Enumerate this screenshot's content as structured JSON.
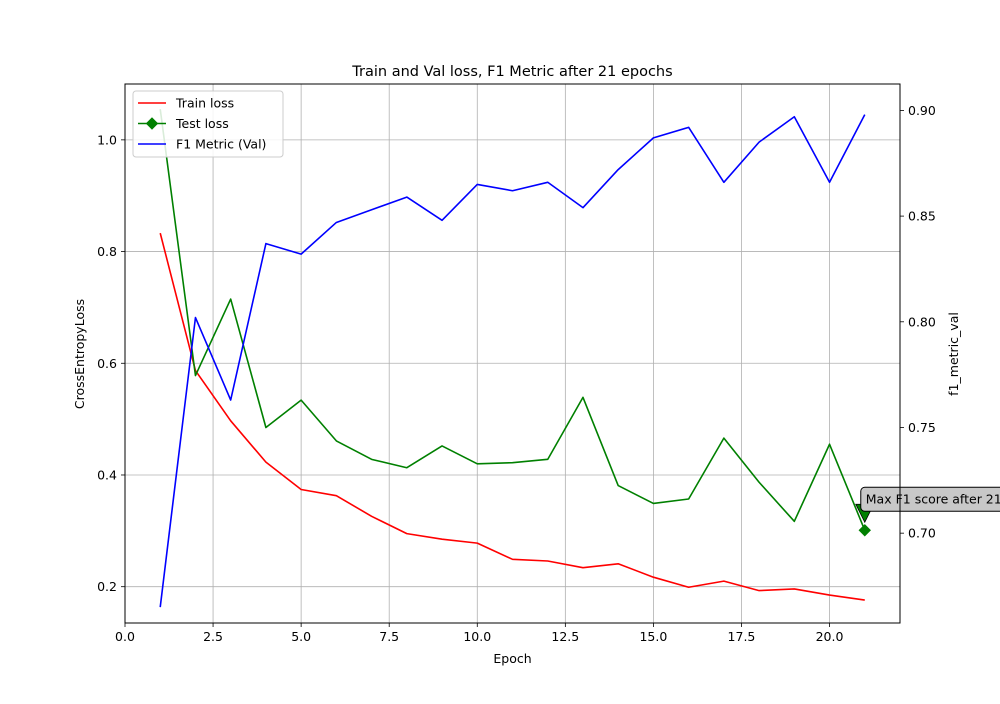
{
  "chart_data": {
    "type": "line",
    "title": "Train and Val loss, F1 Metric after 21 epochs",
    "xlabel": "Epoch",
    "ylabel": "CrossEntropyLoss",
    "ylabel_right": "f1_metric_val",
    "xlim": [
      0,
      22.0
    ],
    "ylim": [
      0.135,
      1.1
    ],
    "ylim_right": [
      0.6575,
      0.9125
    ],
    "x_ticks": [
      "0.0",
      "2.5",
      "5.0",
      "7.5",
      "10.0",
      "12.5",
      "15.0",
      "17.5",
      "20.0"
    ],
    "y_ticks": [
      "0.2",
      "0.4",
      "0.6",
      "0.8",
      "1.0"
    ],
    "y_ticks_right": [
      "0.70",
      "0.75",
      "0.80",
      "0.85",
      "0.90"
    ],
    "grid": true,
    "legend_position": "top-left",
    "x": [
      1,
      2,
      3,
      4,
      5,
      6,
      7,
      8,
      9,
      10,
      11,
      12,
      13,
      14,
      15,
      16,
      17,
      18,
      19,
      20,
      21
    ],
    "series": [
      {
        "name": "Train loss",
        "axis": "left",
        "color": "#ff0000",
        "marker": "none",
        "values": [
          0.833,
          0.587,
          0.497,
          0.423,
          0.374,
          0.363,
          0.326,
          0.295,
          0.285,
          0.278,
          0.249,
          0.246,
          0.234,
          0.241,
          0.217,
          0.199,
          0.21,
          0.193,
          0.196,
          0.185,
          0.176
        ]
      },
      {
        "name": "Test loss",
        "axis": "left",
        "color": "#008000",
        "marker": "diamond",
        "values": [
          1.055,
          0.578,
          0.715,
          0.485,
          0.534,
          0.461,
          0.428,
          0.413,
          0.452,
          0.42,
          0.422,
          0.428,
          0.539,
          0.381,
          0.349,
          0.357,
          0.466,
          0.387,
          0.317,
          0.455,
          0.301
        ]
      },
      {
        "name": "F1 Metric (Val)",
        "axis": "right",
        "color": "#0000ff",
        "marker": "none",
        "values": [
          0.665,
          0.802,
          0.763,
          0.837,
          0.832,
          0.847,
          0.853,
          0.859,
          0.848,
          0.865,
          0.862,
          0.866,
          0.854,
          0.872,
          0.887,
          0.892,
          0.866,
          0.885,
          0.897,
          0.866,
          0.898
        ]
      }
    ],
    "annotation": {
      "text": "Max F1 score after 21",
      "x": 21,
      "y": 0.301,
      "axis": "left",
      "arrow_color": "#008000",
      "box_color": "#c8c8c8"
    }
  }
}
